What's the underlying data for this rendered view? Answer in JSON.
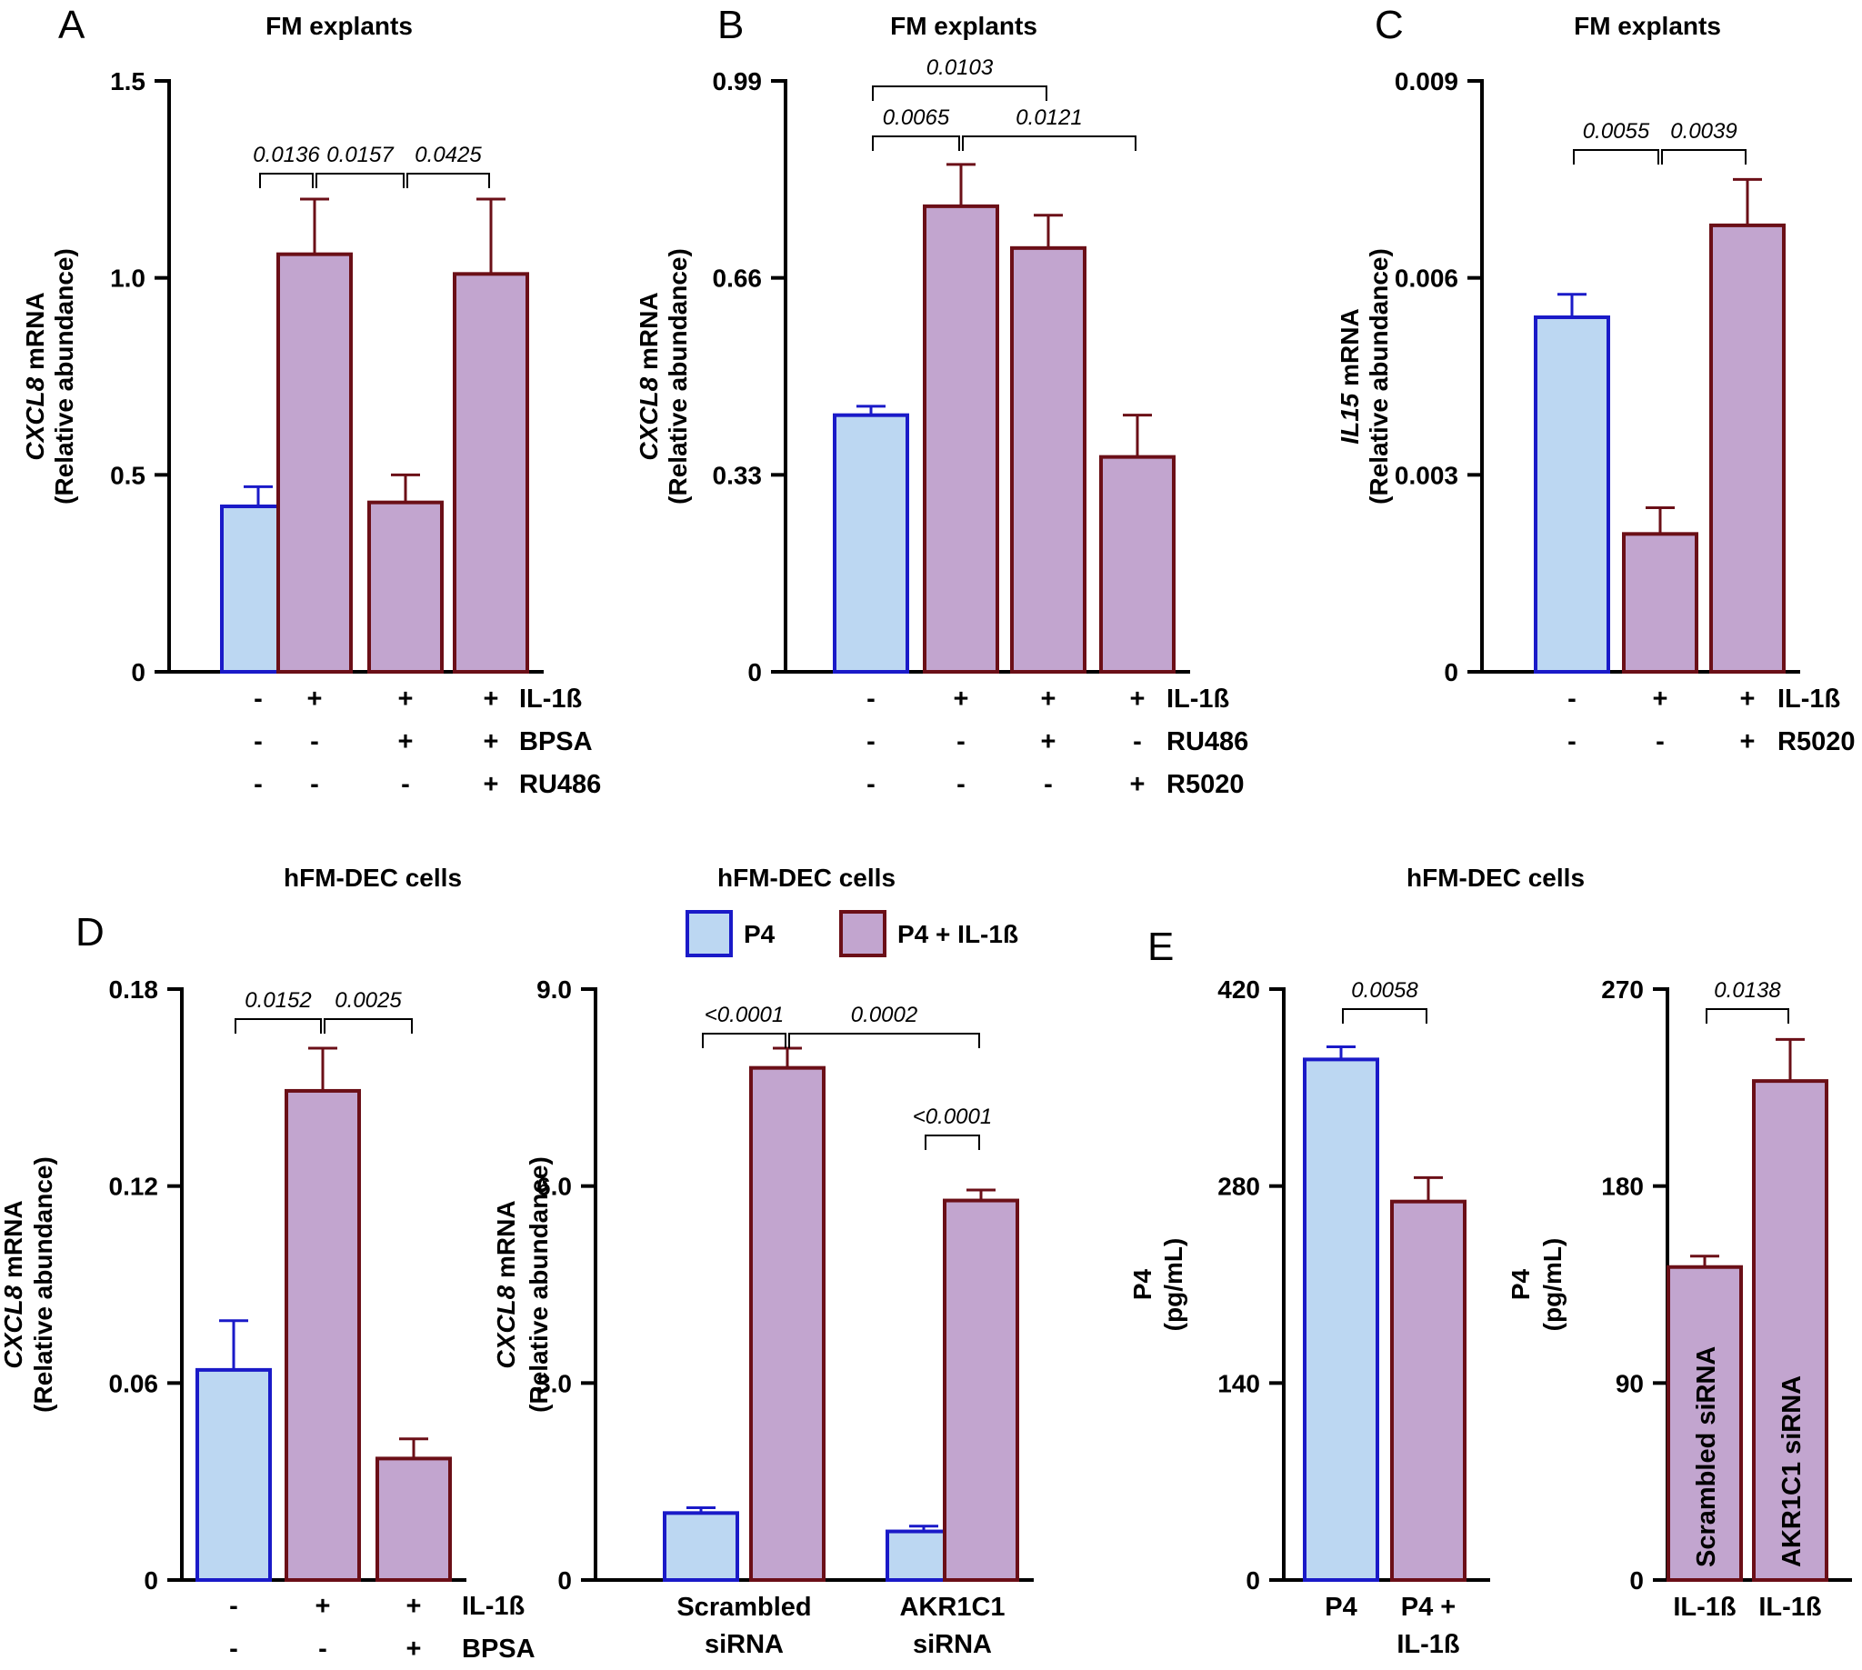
{
  "colors": {
    "control_fill": "#bcd7f2",
    "control_stroke": "#1a1ac8",
    "treated_fill": "#c2a5cf",
    "treated_stroke": "#6b0f17"
  },
  "legend": {
    "items": [
      {
        "label": "P4",
        "kind": "control"
      },
      {
        "label": "P4 + IL-1ß",
        "kind": "treated"
      }
    ]
  },
  "chart_data": [
    {
      "id": "A",
      "panel_label": "A",
      "type": "bar",
      "title": "FM explants",
      "ylabel_gene": "CXCL8",
      "ylabel_rest": " mRNA",
      "ylabel_line2": "(Relative abundance)",
      "ylim": [
        0,
        1.5
      ],
      "yticks": [
        "0",
        "0.5",
        "1.0",
        "1.5"
      ],
      "values": [
        0.42,
        1.06,
        0.43,
        1.01
      ],
      "errors": [
        0.05,
        0.14,
        0.07,
        0.19
      ],
      "kinds": [
        "control",
        "treated",
        "treated",
        "treated"
      ],
      "condition_rows": [
        {
          "marks": [
            "-",
            "+",
            "+",
            "+"
          ],
          "label": "IL-1ß"
        },
        {
          "marks": [
            "-",
            "-",
            "+",
            "+"
          ],
          "label": "BPSA"
        },
        {
          "marks": [
            "-",
            "-",
            "-",
            "+"
          ],
          "label": "RU486"
        }
      ],
      "comparisons": [
        {
          "from": 0,
          "to": 1,
          "p": "0.0136"
        },
        {
          "from": 1,
          "to": 2,
          "p": "0.0157"
        },
        {
          "from": 2,
          "to": 3,
          "p": "0.0425"
        }
      ]
    },
    {
      "id": "B",
      "panel_label": "B",
      "type": "bar",
      "title": "FM explants",
      "ylabel_gene": "CXCL8",
      "ylabel_rest": " mRNA",
      "ylabel_line2": "(Relative abundance)",
      "ylim": [
        0,
        0.99
      ],
      "yticks": [
        "0",
        "0.33",
        "0.66",
        "0.99"
      ],
      "values": [
        0.43,
        0.78,
        0.71,
        0.36
      ],
      "errors": [
        0.015,
        0.07,
        0.055,
        0.07
      ],
      "kinds": [
        "control",
        "treated",
        "treated",
        "treated"
      ],
      "condition_rows": [
        {
          "marks": [
            "-",
            "+",
            "+",
            "+"
          ],
          "label": "IL-1ß"
        },
        {
          "marks": [
            "-",
            "-",
            "+",
            "-"
          ],
          "label": "RU486"
        },
        {
          "marks": [
            "-",
            "-",
            "-",
            "+"
          ],
          "label": "R5020"
        }
      ],
      "comparisons": [
        {
          "from": 0,
          "to": 1,
          "p": "0.0065"
        },
        {
          "from": 1,
          "to": 3,
          "p": "0.0121"
        },
        {
          "from": 0,
          "to": 2,
          "p": "0.0103"
        }
      ]
    },
    {
      "id": "C",
      "panel_label": "C",
      "type": "bar",
      "title": "FM explants",
      "ylabel_gene": "IL15",
      "ylabel_rest": " mRNA",
      "ylabel_line2": "(Relative abundance)",
      "ylim": [
        0,
        0.009
      ],
      "yticks": [
        "0",
        "0.003",
        "0.006",
        "0.009"
      ],
      "values": [
        0.0054,
        0.0021,
        0.0068
      ],
      "errors": [
        0.00035,
        0.0004,
        0.0007
      ],
      "kinds": [
        "control",
        "treated",
        "treated"
      ],
      "condition_rows": [
        {
          "marks": [
            "-",
            "+",
            "+"
          ],
          "label": "IL-1ß"
        },
        {
          "marks": [
            "-",
            "-",
            "+"
          ],
          "label": "R5020"
        }
      ],
      "comparisons": [
        {
          "from": 0,
          "to": 1,
          "p": "0.0055"
        },
        {
          "from": 1,
          "to": 2,
          "p": "0.0039"
        }
      ]
    },
    {
      "id": "D1",
      "panel_label": "D",
      "type": "bar",
      "title": "hFM-DEC cells",
      "ylabel_gene": "CXCL8",
      "ylabel_rest": " mRNA",
      "ylabel_line2": "(Relative abundance)",
      "ylim": [
        0,
        0.18
      ],
      "yticks": [
        "0",
        "0.06",
        "0.12",
        "0.18"
      ],
      "values": [
        0.064,
        0.149,
        0.037
      ],
      "errors": [
        0.015,
        0.013,
        0.006
      ],
      "kinds": [
        "control",
        "treated",
        "treated"
      ],
      "condition_rows": [
        {
          "marks": [
            "-",
            "+",
            "+"
          ],
          "label": "IL-1ß"
        },
        {
          "marks": [
            "-",
            "-",
            "+"
          ],
          "label": "BPSA"
        }
      ],
      "comparisons": [
        {
          "from": 0,
          "to": 1,
          "p": "0.0152"
        },
        {
          "from": 1,
          "to": 2,
          "p": "0.0025"
        }
      ]
    },
    {
      "id": "D2",
      "panel_label": "",
      "type": "bar",
      "title": "hFM-DEC cells",
      "ylabel_gene": "CXCL8",
      "ylabel_rest": " mRNA",
      "ylabel_line2": "(Relative abundance)",
      "ylim": [
        0,
        9.0
      ],
      "yticks": [
        "0",
        "3.0",
        "6.0",
        "9.0"
      ],
      "values": [
        1.02,
        7.8,
        0.74,
        5.78
      ],
      "errors": [
        0.08,
        0.3,
        0.08,
        0.16
      ],
      "kinds": [
        "control",
        "treated",
        "control",
        "treated"
      ],
      "groups": [
        {
          "lines": [
            "Scrambled",
            "siRNA"
          ],
          "bars": [
            0,
            1
          ]
        },
        {
          "lines": [
            "AKR1C1",
            "siRNA"
          ],
          "bars": [
            2,
            3
          ]
        }
      ],
      "comparisons": [
        {
          "from": 0,
          "to": 1,
          "p": "<0.0001"
        },
        {
          "from": 1,
          "to": 3,
          "p": "0.0002"
        },
        {
          "from": 2,
          "to": 3,
          "p": "<0.0001"
        }
      ]
    },
    {
      "id": "E1",
      "panel_label": "E",
      "type": "bar",
      "title": "hFM-DEC cells",
      "ylabel_gene": "",
      "ylabel_rest": "P4",
      "ylabel_line2": "(pg/mL)",
      "ylim": [
        0,
        420
      ],
      "yticks": [
        "0",
        "140",
        "280",
        "420"
      ],
      "values": [
        370,
        269
      ],
      "errors": [
        9,
        17
      ],
      "kinds": [
        "control",
        "treated"
      ],
      "bar_labels": [
        [
          "P4"
        ],
        [
          "P4 +",
          "IL-1ß"
        ]
      ],
      "comparisons": [
        {
          "from": 0,
          "to": 1,
          "p": "0.0058"
        }
      ]
    },
    {
      "id": "E2",
      "panel_label": "",
      "type": "bar",
      "title": "",
      "ylabel_gene": "",
      "ylabel_rest": "P4",
      "ylabel_line2": "(pg/mL)",
      "ylim": [
        0,
        270
      ],
      "yticks": [
        "0",
        "90",
        "180",
        "270"
      ],
      "values": [
        143,
        228
      ],
      "errors": [
        5,
        19
      ],
      "kinds": [
        "treated",
        "treated"
      ],
      "inner_labels": [
        "Scrambled siRNA",
        "AKR1C1 siRNA"
      ],
      "bar_labels": [
        [
          "IL-1ß"
        ],
        [
          "IL-1ß"
        ]
      ],
      "comparisons": [
        {
          "from": 0,
          "to": 1,
          "p": "0.0138"
        }
      ]
    }
  ]
}
